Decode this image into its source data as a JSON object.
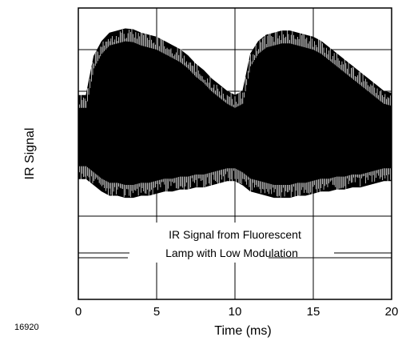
{
  "chart_data": {
    "type": "line",
    "title": "",
    "xlabel": "Time (ms)",
    "ylabel": "IR Signal",
    "xlim": [
      0,
      20
    ],
    "ylim": [
      0,
      7
    ],
    "xticks": [
      "0",
      "5",
      "10",
      "15",
      "20"
    ],
    "grid": true,
    "figure_id": "16920",
    "annotation_lines": [
      "IR Signal from Fluorescent",
      "Lamp with Low Modulation"
    ],
    "series": [
      {
        "style": "dense-oscillation-envelope",
        "x": [
          0,
          0.5,
          1,
          1.5,
          2,
          2.5,
          3,
          3.5,
          4,
          4.5,
          5,
          5.5,
          6,
          6.5,
          7,
          7.5,
          8,
          8.5,
          9,
          9.5,
          10,
          10.5,
          11,
          11.5,
          12,
          12.5,
          13,
          13.5,
          14,
          14.5,
          15,
          15.5,
          16,
          16.5,
          17,
          17.5,
          18,
          18.5,
          19,
          19.5,
          20
        ],
        "upper": [
          4.9,
          4.9,
          5.85,
          6.2,
          6.4,
          6.45,
          6.5,
          6.48,
          6.4,
          6.35,
          6.3,
          6.2,
          6.1,
          6.0,
          5.85,
          5.65,
          5.5,
          5.3,
          5.15,
          5.0,
          4.9,
          5.0,
          5.9,
          6.2,
          6.35,
          6.4,
          6.45,
          6.45,
          6.4,
          6.35,
          6.3,
          6.2,
          6.05,
          5.9,
          5.75,
          5.6,
          5.45,
          5.3,
          5.15,
          5.0,
          4.95
        ],
        "lower": [
          2.9,
          2.9,
          2.75,
          2.6,
          2.5,
          2.5,
          2.45,
          2.45,
          2.5,
          2.5,
          2.55,
          2.6,
          2.6,
          2.65,
          2.65,
          2.7,
          2.7,
          2.75,
          2.8,
          2.85,
          2.85,
          2.75,
          2.6,
          2.55,
          2.5,
          2.45,
          2.45,
          2.45,
          2.5,
          2.5,
          2.55,
          2.6,
          2.6,
          2.65,
          2.65,
          2.7,
          2.7,
          2.75,
          2.8,
          2.85,
          2.85
        ]
      }
    ]
  }
}
